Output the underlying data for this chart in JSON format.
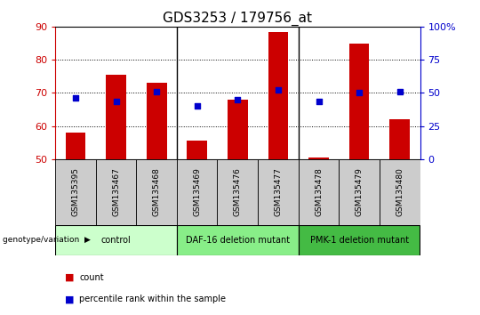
{
  "title": "GDS3253 / 179756_at",
  "samples": [
    "GSM135395",
    "GSM135467",
    "GSM135468",
    "GSM135469",
    "GSM135476",
    "GSM135477",
    "GSM135478",
    "GSM135479",
    "GSM135480"
  ],
  "counts": [
    58.0,
    75.5,
    73.0,
    55.5,
    68.0,
    88.5,
    50.5,
    85.0,
    62.0
  ],
  "percentiles": [
    68.5,
    67.5,
    70.5,
    66.0,
    68.0,
    71.0,
    67.5,
    70.0,
    70.5
  ],
  "ylim_left": [
    50,
    90
  ],
  "ylim_right": [
    0,
    100
  ],
  "yticks_left": [
    50,
    60,
    70,
    80,
    90
  ],
  "yticks_right": [
    0,
    25,
    50,
    75,
    100
  ],
  "ytick_labels_right": [
    "0",
    "25",
    "50",
    "75",
    "100%"
  ],
  "bar_color": "#cc0000",
  "dot_color": "#0000cc",
  "groups": [
    {
      "label": "control",
      "start": 0,
      "end": 3,
      "color": "#ccffcc"
    },
    {
      "label": "DAF-16 deletion mutant",
      "start": 3,
      "end": 6,
      "color": "#88ee88"
    },
    {
      "label": "PMK-1 deletion mutant",
      "start": 6,
      "end": 9,
      "color": "#44bb44"
    }
  ],
  "group_row_label": "genotype/variation",
  "legend_count_label": "count",
  "legend_percentile_label": "percentile rank within the sample",
  "tick_box_color": "#cccccc",
  "bar_width": 0.5
}
